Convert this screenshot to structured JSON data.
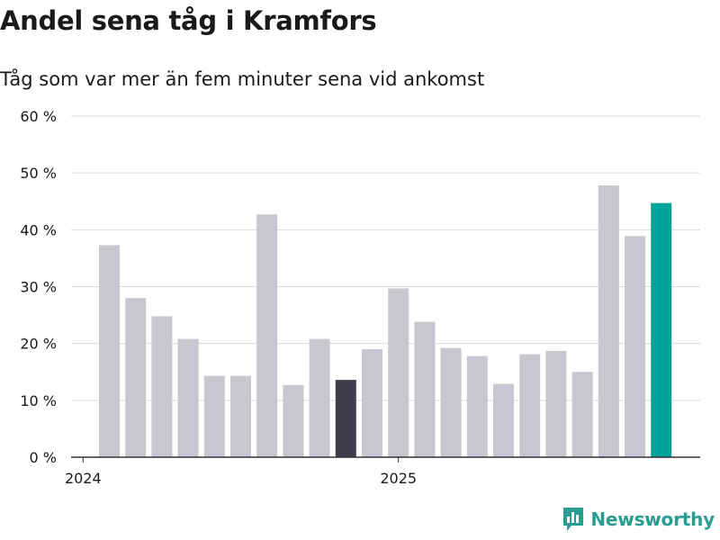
{
  "title": "Andel sena tåg i Kramfors",
  "subtitle": "Tåg som var mer än fem minuter sena vid ankomst",
  "brand": "Newsworthy",
  "colors": {
    "bar_default": "#c8c7cf",
    "bar_highlight_dark": "#403e4c",
    "bar_highlight_latest": "#00a39a",
    "grid": "#dcdcdc",
    "axis": "#333333",
    "text": "#1a1a1a",
    "brand": "#2a9d93"
  },
  "chart_data": {
    "type": "bar",
    "title": "Andel sena tåg i Kramfors",
    "subtitle": "Tåg som var mer än fem minuter sena vid ankomst",
    "xlabel": "",
    "ylabel": "",
    "ylim": [
      0,
      60
    ],
    "yticks": [
      0,
      10,
      20,
      30,
      40,
      50,
      60
    ],
    "ytick_labels": [
      "0 %",
      "10 %",
      "20 %",
      "30 %",
      "40 %",
      "50 %",
      "60 %"
    ],
    "xtick_labels": [
      {
        "label": "2024",
        "month": "2024-01"
      },
      {
        "label": "2025",
        "month": "2025-01"
      }
    ],
    "grid": true,
    "categories": [
      "2024-02",
      "2024-03",
      "2024-04",
      "2024-05",
      "2024-06",
      "2024-07",
      "2024-08",
      "2024-09",
      "2024-10",
      "2024-11",
      "2024-12",
      "2025-01",
      "2025-02",
      "2025-03",
      "2025-04",
      "2025-05",
      "2025-06",
      "2025-07",
      "2025-08",
      "2025-09",
      "2025-10",
      "2025-11"
    ],
    "values": [
      37.3,
      28.0,
      24.8,
      20.8,
      14.3,
      14.3,
      42.7,
      12.7,
      20.8,
      13.6,
      19.0,
      29.7,
      23.8,
      19.2,
      17.8,
      12.9,
      18.1,
      18.7,
      15.0,
      47.8,
      38.9,
      44.7
    ],
    "highlight": {
      "2024-11": "dark",
      "2025-11": "latest"
    }
  }
}
